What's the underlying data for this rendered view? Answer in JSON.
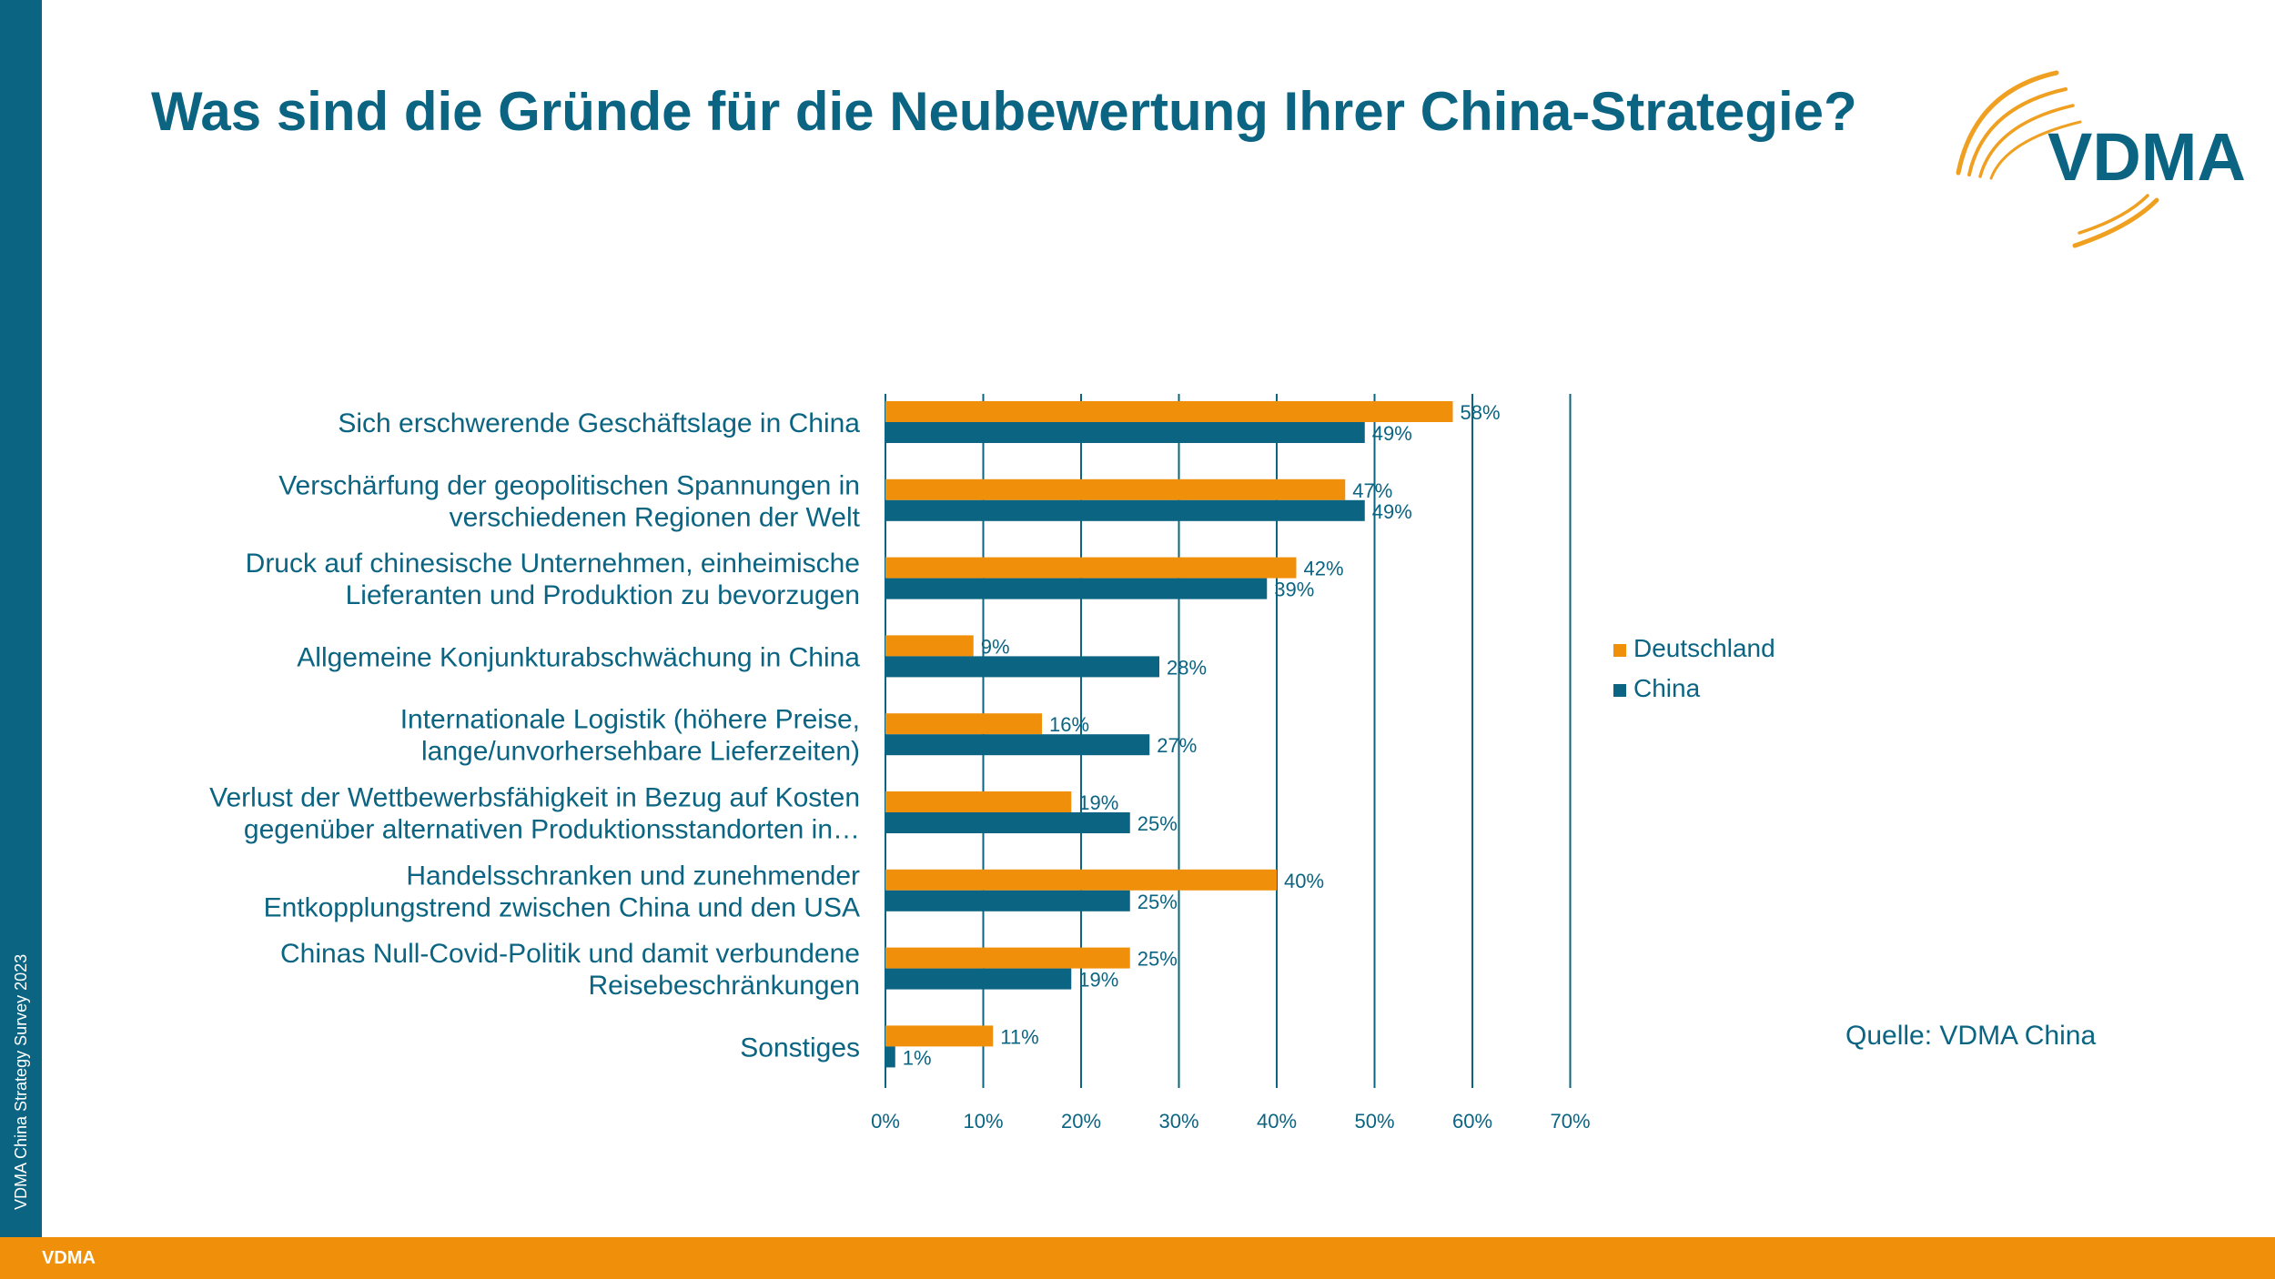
{
  "title": "Was sind die Gründe für die Neubewertung Ihrer China-Strategie?",
  "logo": {
    "text": "VDMA"
  },
  "side_text": "VDMA China Strategy Survey 2023",
  "footer": {
    "text": "VDMA"
  },
  "source": "Quelle: VDMA China",
  "colors": {
    "deutschland": "#f0900a",
    "china": "#0b6482",
    "text": "#0b6482",
    "grid": "#0b6482"
  },
  "chart_data": {
    "type": "bar",
    "orientation": "horizontal",
    "categories": [
      [
        "Sich erschwerende Geschäftslage in China"
      ],
      [
        "Verschärfung der geopolitischen Spannungen in",
        "verschiedenen Regionen der Welt"
      ],
      [
        "Druck auf chinesische Unternehmen, einheimische",
        "Lieferanten und Produktion zu bevorzugen"
      ],
      [
        "Allgemeine Konjunkturabschwächung in China"
      ],
      [
        "Internationale Logistik (höhere Preise,",
        "lange/unvorhersehbare Lieferzeiten)"
      ],
      [
        "Verlust der Wettbewerbsfähigkeit in Bezug auf Kosten",
        "gegenüber alternativen Produktionsstandorten in…"
      ],
      [
        "Handelsschranken und zunehmender",
        "Entkopplungstrend zwischen China und den USA"
      ],
      [
        "Chinas Null-Covid-Politik und damit verbundene",
        "Reisebeschränkungen"
      ],
      [
        "Sonstiges"
      ]
    ],
    "series": [
      {
        "name": "Deutschland",
        "color": "#f0900a",
        "values": [
          58,
          47,
          42,
          9,
          16,
          19,
          40,
          25,
          11
        ]
      },
      {
        "name": "China",
        "color": "#0b6482",
        "values": [
          49,
          49,
          39,
          28,
          27,
          25,
          25,
          19,
          1
        ]
      }
    ],
    "xlim": [
      0,
      70
    ],
    "xticks": [
      "0%",
      "10%",
      "20%",
      "30%",
      "40%",
      "50%",
      "60%",
      "70%"
    ],
    "value_suffix": "%",
    "legend_position": "right",
    "grid": true
  }
}
